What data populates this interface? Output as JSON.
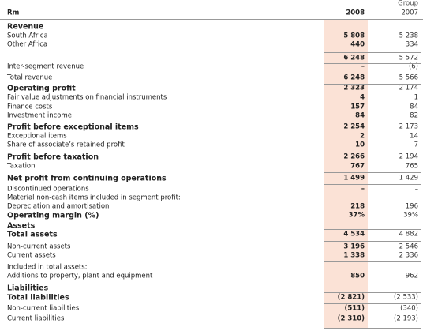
{
  "header": {
    "group": "Group",
    "unit": "Rm",
    "col_2008": "2008",
    "col_2007": "2007"
  },
  "table": {
    "rows": [
      {
        "label": "Revenue"
      },
      {
        "label": "South Africa",
        "y2008": "5 808",
        "y2007": "5 238"
      },
      {
        "label": "Other Africa",
        "y2008": "440",
        "y2007": "334"
      },
      {
        "y2008": "6 248",
        "y2007": "5 572"
      },
      {
        "label": "Inter-segment revenue",
        "y2008": "–",
        "y2007": "(6)"
      },
      {
        "label": "Total revenue",
        "y2008": "6 248",
        "y2007": "5 566"
      },
      {
        "label": "Operating profit",
        "y2008": "2 323",
        "y2007": "2 174"
      },
      {
        "label": "Fair value adjustments on financial instruments",
        "y2008": "4",
        "y2007": "1"
      },
      {
        "label": "Finance costs",
        "y2008": "157",
        "y2007": "84"
      },
      {
        "label": "Investment income",
        "y2008": "84",
        "y2007": "82"
      },
      {
        "label": "Profit before exceptional items",
        "y2008": "2 254",
        "y2007": "2 173"
      },
      {
        "label": "Exceptional items",
        "y2008": "2",
        "y2007": "14"
      },
      {
        "label": "Share of associate’s retained profit",
        "y2008": "10",
        "y2007": "7"
      },
      {
        "label": "Profit before taxation",
        "y2008": "2 266",
        "y2007": "2 194"
      },
      {
        "label": "Taxation",
        "y2008": "767",
        "y2007": "765"
      },
      {
        "label": "Net profit from continuing operations",
        "y2008": "1 499",
        "y2007": "1 429"
      },
      {
        "label": "Discontinued operations",
        "y2008": "–",
        "y2007": "–"
      },
      {
        "label": "Material non-cash items included in segment profit:"
      },
      {
        "label": "Depreciation and amortisation",
        "y2008": "218",
        "y2007": "196"
      },
      {
        "label": "Operating margin (%)",
        "y2008": "37%",
        "y2007": "39%"
      },
      {
        "label": "Assets"
      },
      {
        "label": "Total assets",
        "y2008": "4 534",
        "y2007": "4 882"
      },
      {
        "label": "Non-current assets",
        "y2008": "3 196",
        "y2007": "2 546"
      },
      {
        "label": "Current assets",
        "y2008": "1 338",
        "y2007": "2 336"
      },
      {
        "label": "Included in total assets:"
      },
      {
        "label": "Additions to property, plant and equipment",
        "y2008": "850",
        "y2007": "962"
      },
      {
        "label": "Liabilities"
      },
      {
        "label": "Total liabilities",
        "y2008": "(2 821)",
        "y2007": "(2 533)"
      },
      {
        "label": "Non-current liabilities",
        "y2008": "(511)",
        "y2007": "(340)"
      },
      {
        "label": "Current liabilities",
        "y2008": "(2 310)",
        "y2007": "(2 193)"
      }
    ]
  }
}
